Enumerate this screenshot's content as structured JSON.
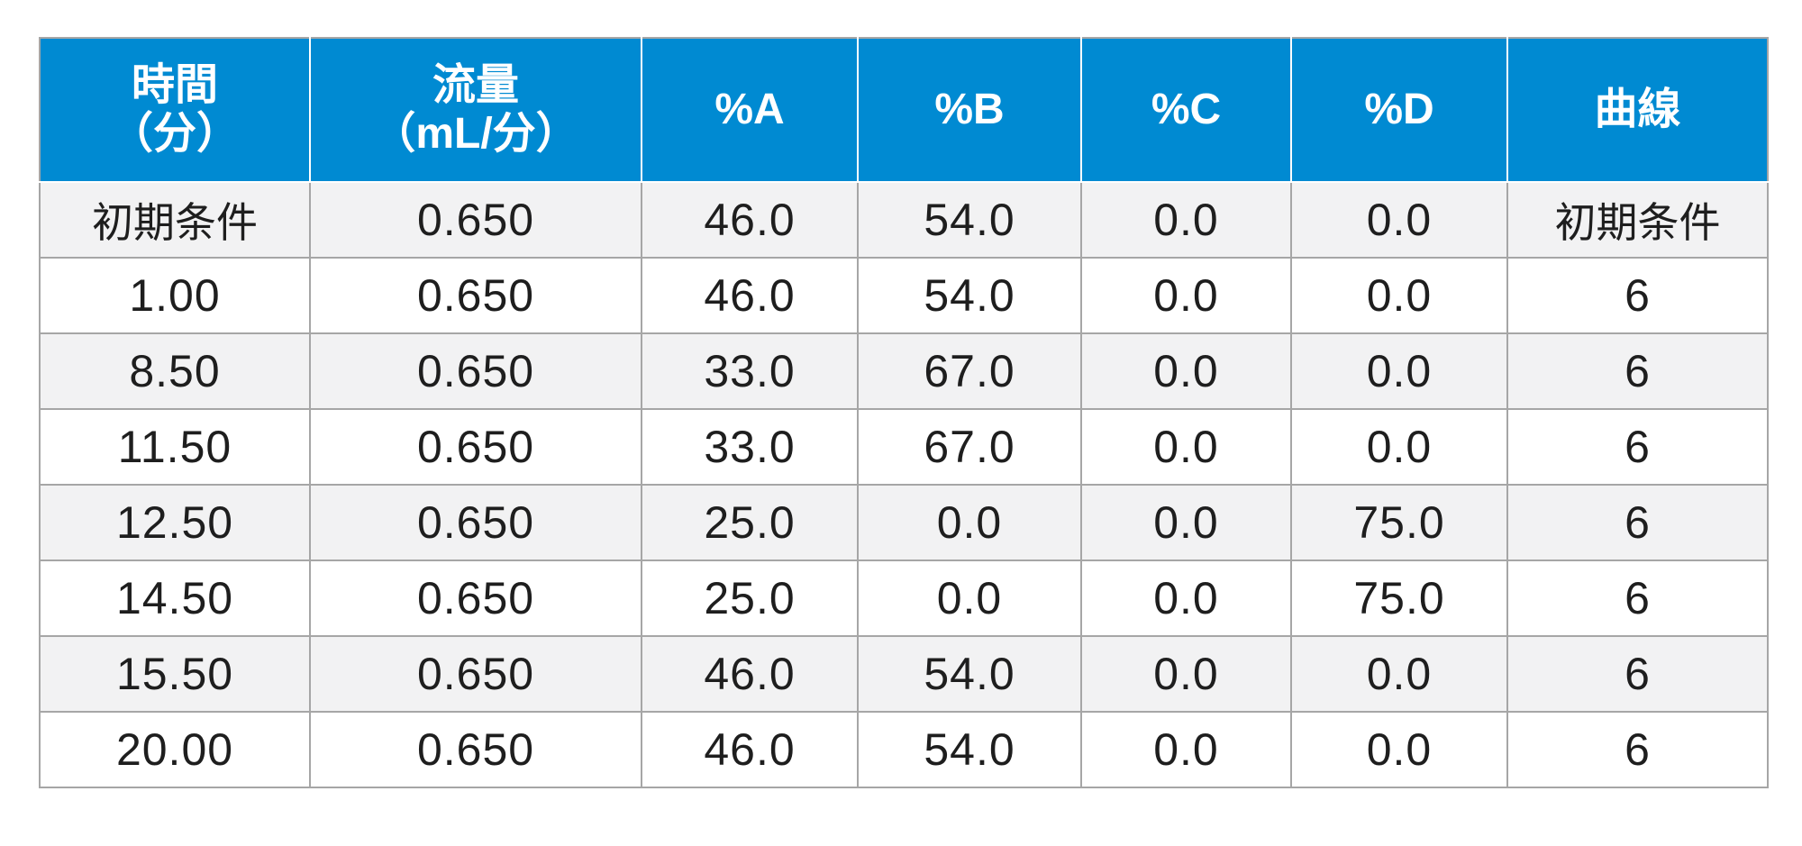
{
  "table": {
    "columns": [
      {
        "line1": "時間",
        "line2": "（分）"
      },
      {
        "line1": "流量",
        "line2": "（mL/分）"
      },
      {
        "line1": "%A",
        "line2": ""
      },
      {
        "line1": "%B",
        "line2": ""
      },
      {
        "line1": "%C",
        "line2": ""
      },
      {
        "line1": "%D",
        "line2": ""
      },
      {
        "line1": "曲線",
        "line2": ""
      }
    ],
    "rows": [
      [
        "初期条件",
        "0.650",
        "46.0",
        "54.0",
        "0.0",
        "0.0",
        "初期条件"
      ],
      [
        "1.00",
        "0.650",
        "46.0",
        "54.0",
        "0.0",
        "0.0",
        "6"
      ],
      [
        "8.50",
        "0.650",
        "33.0",
        "67.0",
        "0.0",
        "0.0",
        "6"
      ],
      [
        "11.50",
        "0.650",
        "33.0",
        "67.0",
        "0.0",
        "0.0",
        "6"
      ],
      [
        "12.50",
        "0.650",
        "25.0",
        "0.0",
        "0.0",
        "75.0",
        "6"
      ],
      [
        "14.50",
        "0.650",
        "25.0",
        "0.0",
        "0.0",
        "75.0",
        "6"
      ],
      [
        "15.50",
        "0.650",
        "46.0",
        "54.0",
        "0.0",
        "0.0",
        "6"
      ],
      [
        "20.00",
        "0.650",
        "46.0",
        "54.0",
        "0.0",
        "0.0",
        "6"
      ]
    ]
  },
  "colors": {
    "header_background": "#008ad2",
    "header_text": "#ffffff",
    "row_odd_background": "#f2f2f3",
    "row_even_background": "#ffffff",
    "border": "#a6a6a6",
    "cell_text": "#1e1e1e"
  }
}
